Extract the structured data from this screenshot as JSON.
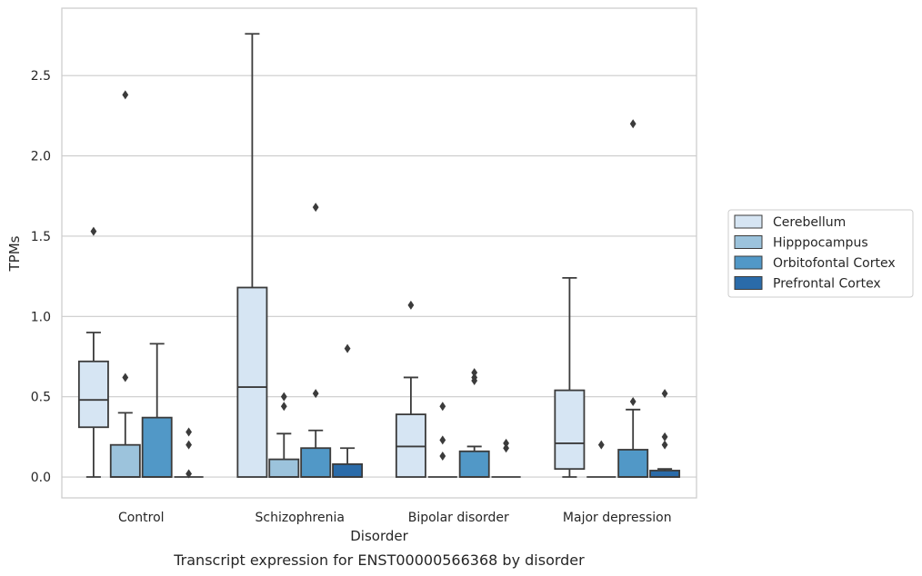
{
  "chart_data": {
    "type": "box",
    "xlabel": "Disorder",
    "ylabel": "TPMs",
    "caption": "Transcript expression for ENST00000566368 by disorder",
    "ylim": [
      -0.13,
      2.92
    ],
    "yticks": [
      "0.0",
      "0.5",
      "1.0",
      "1.5",
      "2.0",
      "2.5"
    ],
    "ytick_values": [
      0.0,
      0.5,
      1.0,
      1.5,
      2.0,
      2.5
    ],
    "grid": "horizontal",
    "legend_position": "right",
    "categories": [
      "Control",
      "Schizophrenia",
      "Bipolar disorder",
      "Major depression"
    ],
    "series": [
      {
        "name": "Cerebellum",
        "color": "#d6e5f3",
        "boxes": [
          {
            "whisker_low": 0.0,
            "q1": 0.31,
            "median": 0.48,
            "q3": 0.72,
            "whisker_high": 0.9,
            "outliers": [
              1.53
            ]
          },
          {
            "whisker_low": 0.0,
            "q1": 0.0,
            "median": 0.56,
            "q3": 1.18,
            "whisker_high": 2.76,
            "outliers": []
          },
          {
            "whisker_low": 0.0,
            "q1": 0.0,
            "median": 0.19,
            "q3": 0.39,
            "whisker_high": 0.62,
            "outliers": [
              1.07
            ]
          },
          {
            "whisker_low": 0.0,
            "q1": 0.05,
            "median": 0.21,
            "q3": 0.54,
            "whisker_high": 1.24,
            "outliers": []
          }
        ]
      },
      {
        "name": "Hipppocampus",
        "color": "#9cc3dc",
        "boxes": [
          {
            "whisker_low": 0.0,
            "q1": 0.0,
            "median": 0.0,
            "q3": 0.2,
            "whisker_high": 0.4,
            "outliers": [
              0.62,
              2.38
            ]
          },
          {
            "whisker_low": 0.0,
            "q1": 0.0,
            "median": 0.0,
            "q3": 0.11,
            "whisker_high": 0.27,
            "outliers": [
              0.44,
              0.5
            ]
          },
          {
            "whisker_low": 0.0,
            "q1": 0.0,
            "median": 0.0,
            "q3": 0.0,
            "whisker_high": 0.0,
            "outliers": [
              0.13,
              0.23,
              0.44
            ]
          },
          {
            "whisker_low": 0.0,
            "q1": 0.0,
            "median": 0.0,
            "q3": 0.0,
            "whisker_high": 0.0,
            "outliers": [
              0.2
            ]
          }
        ]
      },
      {
        "name": "Orbitofontal Cortex",
        "color": "#5198c7",
        "boxes": [
          {
            "whisker_low": 0.0,
            "q1": 0.0,
            "median": 0.0,
            "q3": 0.37,
            "whisker_high": 0.83,
            "outliers": []
          },
          {
            "whisker_low": 0.0,
            "q1": 0.0,
            "median": 0.0,
            "q3": 0.18,
            "whisker_high": 0.29,
            "outliers": [
              0.52,
              1.68
            ]
          },
          {
            "whisker_low": 0.0,
            "q1": 0.0,
            "median": 0.0,
            "q3": 0.16,
            "whisker_high": 0.19,
            "outliers": [
              0.6,
              0.62,
              0.65
            ]
          },
          {
            "whisker_low": 0.0,
            "q1": 0.0,
            "median": 0.0,
            "q3": 0.17,
            "whisker_high": 0.42,
            "outliers": [
              0.47,
              2.2
            ]
          }
        ]
      },
      {
        "name": "Prefrontal Cortex",
        "color": "#2a6ba9",
        "boxes": [
          {
            "whisker_low": 0.0,
            "q1": 0.0,
            "median": 0.0,
            "q3": 0.0,
            "whisker_high": 0.0,
            "outliers": [
              0.02,
              0.2,
              0.28
            ]
          },
          {
            "whisker_low": 0.0,
            "q1": 0.0,
            "median": 0.0,
            "q3": 0.08,
            "whisker_high": 0.18,
            "outliers": [
              0.8
            ]
          },
          {
            "whisker_low": 0.0,
            "q1": 0.0,
            "median": 0.0,
            "q3": 0.0,
            "whisker_high": 0.0,
            "outliers": [
              0.18,
              0.21
            ]
          },
          {
            "whisker_low": 0.0,
            "q1": 0.0,
            "median": 0.0,
            "q3": 0.04,
            "whisker_high": 0.05,
            "outliers": [
              0.2,
              0.25,
              0.52
            ]
          }
        ]
      }
    ],
    "colors": {
      "axis_frame": "#cccccc",
      "grid": "#cccccc",
      "box_edge": "#3b3b3b"
    }
  }
}
